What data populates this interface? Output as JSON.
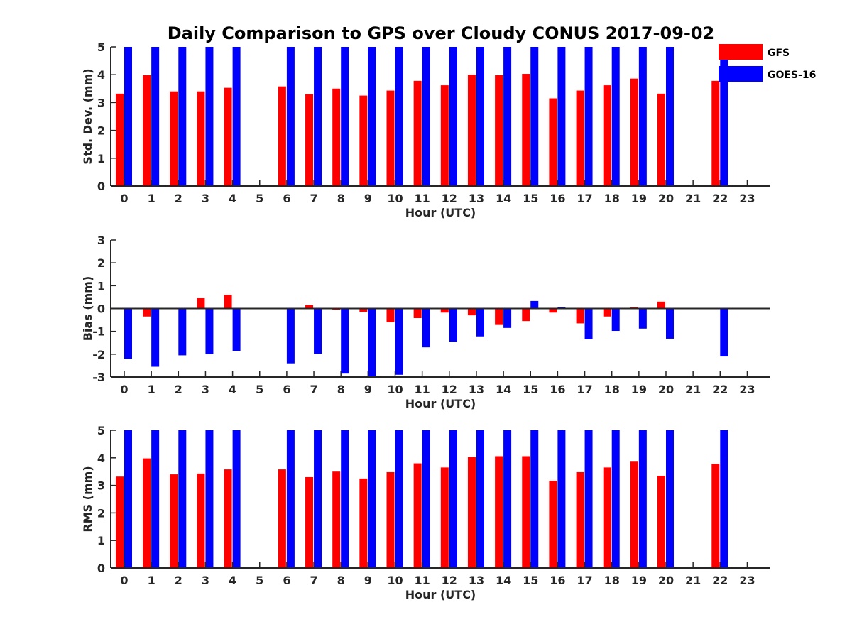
{
  "title": "Daily Comparison to GPS over Cloudy CONUS 2017-09-02",
  "colors": {
    "GFS": "#ff0000",
    "GOES-16": "#0000ff",
    "axis": "#262626"
  },
  "legend": {
    "placement": "top-right",
    "entries": [
      "GFS",
      "GOES-16"
    ]
  },
  "chart_data": [
    {
      "type": "bar",
      "ylabel": "Std. Dev. (mm)",
      "xlabel": "Hour (UTC)",
      "ylim": [
        0,
        5
      ],
      "yticks": [
        0,
        1,
        2,
        3,
        4,
        5
      ],
      "categories": [
        "0",
        "1",
        "2",
        "3",
        "4",
        "5",
        "6",
        "7",
        "8",
        "9",
        "10",
        "11",
        "12",
        "13",
        "14",
        "15",
        "16",
        "17",
        "18",
        "19",
        "20",
        "21",
        "22",
        "23"
      ],
      "series": [
        {
          "name": "GFS",
          "values": [
            3.32,
            3.98,
            3.4,
            3.4,
            3.53,
            null,
            3.58,
            3.3,
            3.5,
            3.25,
            3.43,
            3.78,
            3.62,
            4.0,
            3.98,
            4.03,
            3.15,
            3.43,
            3.62,
            3.86,
            3.32,
            null,
            3.78,
            null
          ]
        },
        {
          "name": "GOES-16",
          "values": [
            5,
            5,
            5,
            5,
            5,
            null,
            5,
            5,
            5,
            5,
            5,
            5,
            5,
            5,
            5,
            5,
            5,
            5,
            5,
            5,
            5,
            null,
            5,
            null
          ]
        }
      ]
    },
    {
      "type": "bar",
      "ylabel": "Bias (mm)",
      "xlabel": "Hour (UTC)",
      "ylim": [
        -3,
        3
      ],
      "yticks": [
        -3,
        -2,
        -1,
        0,
        1,
        2,
        3
      ],
      "categories": [
        "0",
        "1",
        "2",
        "3",
        "4",
        "5",
        "6",
        "7",
        "8",
        "9",
        "10",
        "11",
        "12",
        "13",
        "14",
        "15",
        "16",
        "17",
        "18",
        "19",
        "20",
        "21",
        "22",
        "23"
      ],
      "series": [
        {
          "name": "GFS",
          "values": [
            0.0,
            -0.35,
            0.02,
            0.45,
            0.6,
            null,
            0.0,
            0.15,
            -0.05,
            -0.15,
            -0.6,
            -0.42,
            -0.18,
            -0.3,
            -0.72,
            -0.55,
            -0.18,
            -0.65,
            -0.35,
            0.05,
            0.3,
            null,
            0.02,
            null
          ]
        },
        {
          "name": "GOES-16",
          "values": [
            -2.2,
            -2.55,
            -2.05,
            -2.0,
            -1.85,
            null,
            -2.4,
            -1.98,
            -2.85,
            -3.0,
            -2.9,
            -1.7,
            -1.45,
            -1.22,
            -0.85,
            0.33,
            0.05,
            -1.35,
            -0.98,
            -0.88,
            -1.32,
            null,
            -2.1,
            null
          ]
        }
      ]
    },
    {
      "type": "bar",
      "ylabel": "RMS (mm)",
      "xlabel": "Hour (UTC)",
      "ylim": [
        0,
        5
      ],
      "yticks": [
        0,
        1,
        2,
        3,
        4,
        5
      ],
      "categories": [
        "0",
        "1",
        "2",
        "3",
        "4",
        "5",
        "6",
        "7",
        "8",
        "9",
        "10",
        "11",
        "12",
        "13",
        "14",
        "15",
        "16",
        "17",
        "18",
        "19",
        "20",
        "21",
        "22",
        "23"
      ],
      "series": [
        {
          "name": "GFS",
          "values": [
            3.32,
            3.98,
            3.4,
            3.43,
            3.58,
            null,
            3.58,
            3.3,
            3.5,
            3.25,
            3.48,
            3.8,
            3.65,
            4.03,
            4.06,
            4.06,
            3.17,
            3.48,
            3.65,
            3.86,
            3.35,
            null,
            3.78,
            null
          ]
        },
        {
          "name": "GOES-16",
          "values": [
            5,
            5,
            5,
            5,
            5,
            null,
            5,
            5,
            5,
            5,
            5,
            5,
            5,
            5,
            5,
            5,
            5,
            5,
            5,
            5,
            5,
            null,
            5,
            null
          ]
        }
      ]
    }
  ]
}
